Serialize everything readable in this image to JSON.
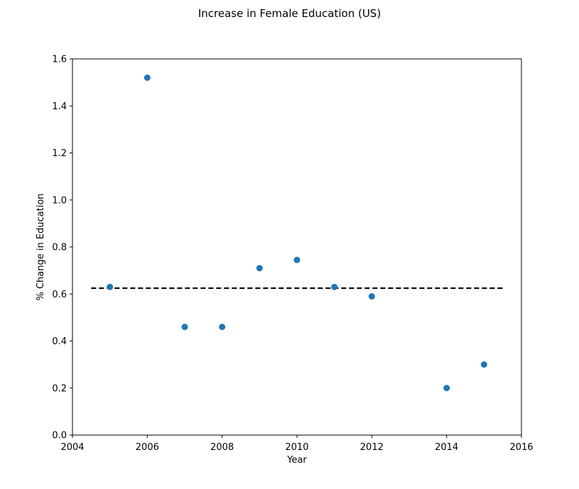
{
  "chart_data": {
    "type": "scatter",
    "title": "Increase in Female Education (US)",
    "xlabel": "Year",
    "ylabel": "% Change in Education",
    "xlim": [
      2004,
      2016
    ],
    "ylim": [
      0.0,
      1.6
    ],
    "xticks": [
      "2004",
      "2006",
      "2008",
      "2010",
      "2012",
      "2014",
      "2016"
    ],
    "yticks": [
      "0.0",
      "0.2",
      "0.4",
      "0.6",
      "0.8",
      "1.0",
      "1.2",
      "1.4",
      "1.6"
    ],
    "grid": false,
    "series": [
      {
        "marker_color": "#1f77b4",
        "points": [
          {
            "x": 2005,
            "y": 0.63
          },
          {
            "x": 2006,
            "y": 1.52
          },
          {
            "x": 2007,
            "y": 0.46
          },
          {
            "x": 2008,
            "y": 0.46
          },
          {
            "x": 2009,
            "y": 0.71
          },
          {
            "x": 2010,
            "y": 0.745
          },
          {
            "x": 2011,
            "y": 0.63
          },
          {
            "x": 2012,
            "y": 0.59
          },
          {
            "x": 2014,
            "y": 0.2
          },
          {
            "x": 2015,
            "y": 0.3
          }
        ]
      }
    ],
    "reference_line": {
      "style": "dashed",
      "color": "#000000",
      "y": 0.625,
      "x_range": [
        2004.5,
        2015.5
      ]
    }
  }
}
